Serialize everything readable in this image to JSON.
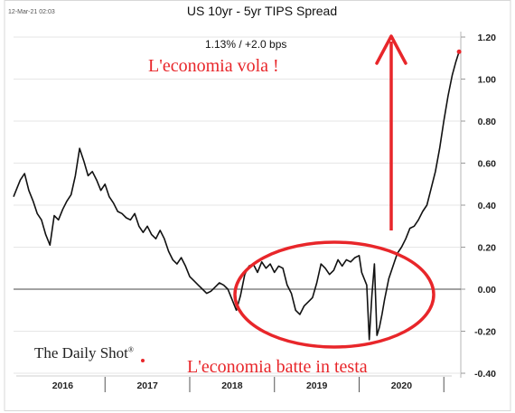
{
  "header": {
    "date": "12-Mar-21 02:03",
    "title": "US 10yr - 5yr TIPS Spread",
    "subtitle": "1.13%  /  +2.0 bps"
  },
  "annotations": {
    "top": "L'economia vola !",
    "bottom": "L'economia batte in testa"
  },
  "brand": {
    "logo_text": "The Daily Shot",
    "logo_mark": "®"
  },
  "colors": {
    "line": "#111111",
    "annotation": "#e8262a",
    "zero_line": "#6a6a6a"
  },
  "chart_data": {
    "type": "line",
    "title": "US 10yr - 5yr TIPS Spread",
    "xlabel": "",
    "ylabel": "",
    "ylim": [
      -0.4,
      1.2
    ],
    "yticks": [
      1.2,
      1.0,
      0.8,
      0.6,
      0.4,
      0.2,
      0.0,
      -0.2,
      -0.4
    ],
    "ytick_labels": [
      "1.20",
      "1.00",
      "0.80",
      "0.60",
      "0.40",
      "0.20",
      "0.00",
      "-0.20",
      "-0.40"
    ],
    "xlim": [
      2015.92,
      2021.2
    ],
    "x_year_labels": [
      "2016",
      "2017",
      "2018",
      "2019",
      "2020"
    ],
    "grid": "horizontal",
    "reference_line": 0.0,
    "last_value": 1.13,
    "series": [
      {
        "x": [
          2015.92,
          2015.96,
          2016.0,
          2016.05,
          2016.1,
          2016.15,
          2016.2,
          2016.25,
          2016.3,
          2016.35,
          2016.4,
          2016.45,
          2016.5,
          2016.55,
          2016.6,
          2016.65,
          2016.7,
          2016.75,
          2016.8,
          2016.85,
          2016.9,
          2016.95,
          2017.0,
          2017.05,
          2017.1,
          2017.15,
          2017.2,
          2017.25,
          2017.3,
          2017.35,
          2017.4,
          2017.45,
          2017.5,
          2017.55,
          2017.6,
          2017.65,
          2017.7,
          2017.75,
          2017.8,
          2017.85,
          2017.9,
          2017.95,
          2018.0,
          2018.05,
          2018.1,
          2018.15,
          2018.2,
          2018.25,
          2018.3,
          2018.35,
          2018.4,
          2018.45,
          2018.5,
          2018.55,
          2018.6,
          2018.65,
          2018.7,
          2018.75,
          2018.8,
          2018.85,
          2018.9,
          2018.95,
          2019.0,
          2019.05,
          2019.1,
          2019.15,
          2019.2,
          2019.25,
          2019.3,
          2019.35,
          2019.4,
          2019.45,
          2019.5,
          2019.55,
          2019.6,
          2019.65,
          2019.7,
          2019.75,
          2019.8,
          2019.85,
          2019.9,
          2019.95,
          2020.0,
          2020.03,
          2020.06,
          2020.09,
          2020.12,
          2020.15,
          2020.18,
          2020.21,
          2020.24,
          2020.27,
          2020.3,
          2020.35,
          2020.4,
          2020.45,
          2020.5,
          2020.55,
          2020.6,
          2020.65,
          2020.7,
          2020.75,
          2020.8,
          2020.85,
          2020.9,
          2020.95,
          2021.0,
          2021.05,
          2021.1,
          2021.14,
          2021.18
        ],
        "values": [
          0.44,
          0.48,
          0.52,
          0.55,
          0.47,
          0.42,
          0.36,
          0.33,
          0.26,
          0.21,
          0.35,
          0.33,
          0.38,
          0.42,
          0.45,
          0.54,
          0.67,
          0.61,
          0.54,
          0.56,
          0.52,
          0.47,
          0.5,
          0.44,
          0.41,
          0.37,
          0.36,
          0.34,
          0.33,
          0.36,
          0.3,
          0.27,
          0.3,
          0.26,
          0.24,
          0.28,
          0.24,
          0.18,
          0.14,
          0.12,
          0.15,
          0.11,
          0.06,
          0.04,
          0.02,
          0.0,
          -0.02,
          -0.01,
          0.01,
          0.03,
          0.02,
          0.0,
          -0.05,
          -0.1,
          -0.03,
          0.07,
          0.11,
          0.12,
          0.08,
          0.13,
          0.1,
          0.12,
          0.08,
          0.11,
          0.1,
          0.02,
          -0.02,
          -0.1,
          -0.12,
          -0.08,
          -0.06,
          -0.04,
          0.03,
          0.12,
          0.1,
          0.07,
          0.09,
          0.14,
          0.11,
          0.14,
          0.13,
          0.15,
          0.16,
          0.08,
          0.05,
          0.02,
          -0.24,
          -0.03,
          0.12,
          -0.22,
          -0.18,
          -0.12,
          -0.05,
          0.05,
          0.11,
          0.17,
          0.2,
          0.24,
          0.29,
          0.3,
          0.33,
          0.37,
          0.4,
          0.48,
          0.56,
          0.67,
          0.8,
          0.92,
          1.02,
          1.08,
          1.13
        ]
      }
    ]
  }
}
